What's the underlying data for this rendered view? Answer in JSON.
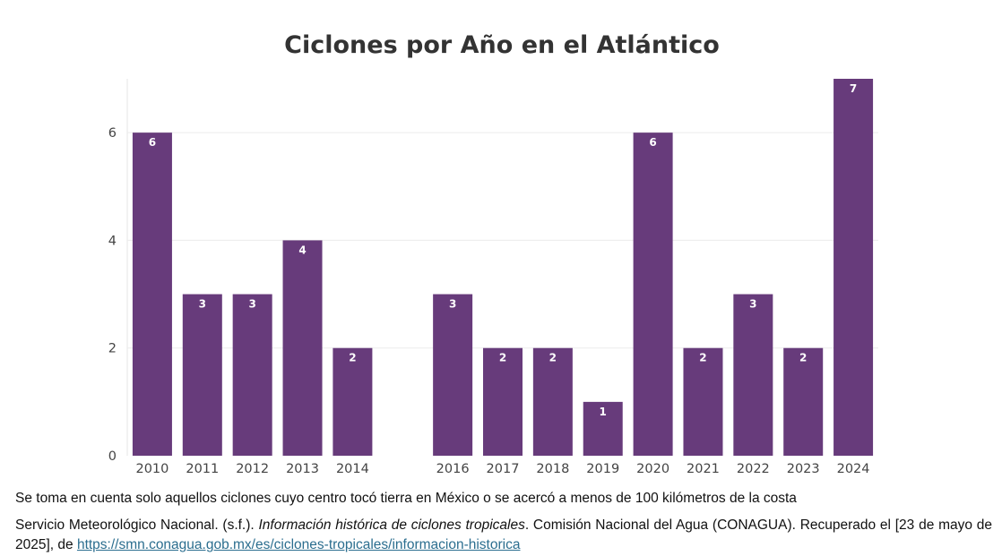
{
  "chart_data": {
    "type": "bar",
    "title": "Ciclones por Año en el Atlántico",
    "categories": [
      "2010",
      "2011",
      "2012",
      "2013",
      "2014",
      "",
      "2016",
      "2017",
      "2018",
      "2019",
      "2020",
      "2021",
      "2022",
      "2023",
      "2024"
    ],
    "values": [
      6,
      3,
      3,
      4,
      2,
      null,
      3,
      2,
      2,
      1,
      6,
      2,
      3,
      2,
      7
    ],
    "data_labels": [
      "6",
      "3",
      "3",
      "4",
      "2",
      "",
      "3",
      "2",
      "2",
      "1",
      "6",
      "2",
      "3",
      "2",
      "7"
    ],
    "y_ticks": [
      0,
      2,
      4,
      6
    ],
    "ylim": [
      0,
      7
    ],
    "xlabel": "",
    "ylabel": "",
    "bar_color": "#673b7b",
    "grid": true
  },
  "footnote": "Se toma en cuenta solo aquellos ciclones cuyo centro tocó tierra en México o se acercó a menos de 100 kilómetros de la costa",
  "citation": {
    "prefix": "Servicio Meteorológico Nacional. (s.f.). ",
    "title": "Información histórica de ciclones tropicales",
    "suffix": ". Comisión Nacional del Agua (CONAGUA). Recuperado el [23 de mayo de 2025], de ",
    "link_text": "https://smn.conagua.gob.mx/es/ciclones-tropicales/informacion-historica"
  }
}
